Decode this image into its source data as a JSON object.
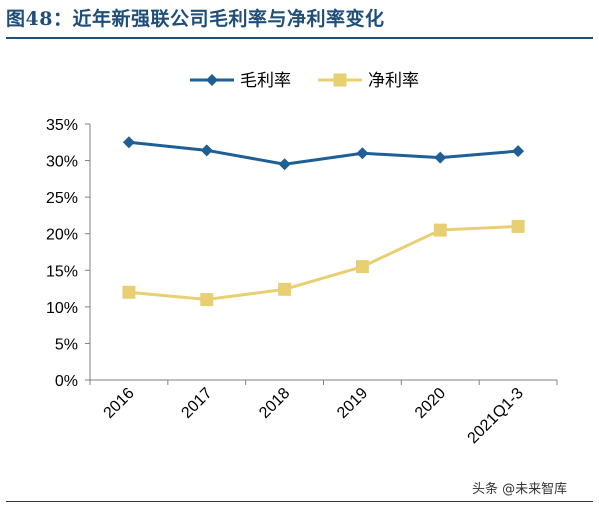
{
  "figure": {
    "title": "图48：近年新强联公司毛利率与净利率变化"
  },
  "watermark": "头条 @未来智库",
  "colors": {
    "title": "#1f4e79",
    "gross_margin": "#1f5f96",
    "net_margin": "#e8cf72",
    "axis": "#7f7f7f",
    "tick_text": "#000000"
  },
  "chart_data": {
    "type": "line",
    "categories": [
      "2016",
      "2017",
      "2018",
      "2019",
      "2020",
      "2021Q1-3"
    ],
    "series": [
      {
        "name": "毛利率",
        "values": [
          32.5,
          31.4,
          29.5,
          31.0,
          30.4,
          31.3
        ],
        "marker": "diamond"
      },
      {
        "name": "净利率",
        "values": [
          12.0,
          11.0,
          12.4,
          15.5,
          20.5,
          21.0
        ],
        "marker": "square"
      }
    ],
    "ylim": [
      0,
      35
    ],
    "yticks": [
      0,
      5,
      10,
      15,
      20,
      25,
      30,
      35
    ],
    "ytick_labels": [
      "0%",
      "5%",
      "10%",
      "15%",
      "20%",
      "25%",
      "30%",
      "35%"
    ],
    "xlabel": "",
    "ylabel": "",
    "legend": "top",
    "grid": false
  }
}
